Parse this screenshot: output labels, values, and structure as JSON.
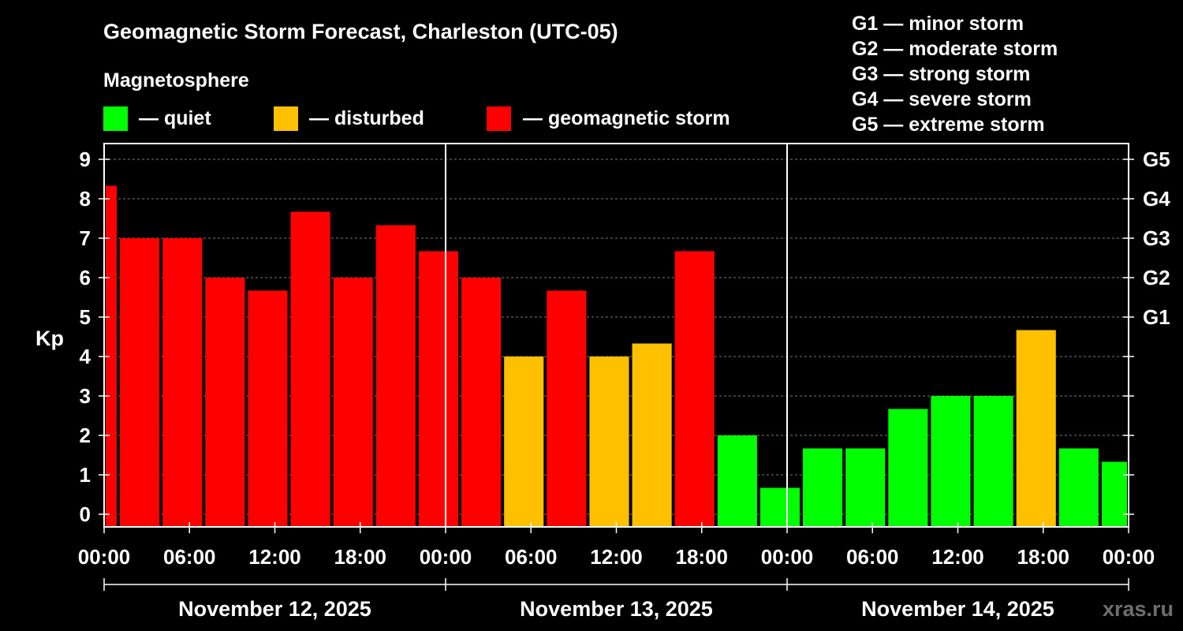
{
  "chart_data": {
    "type": "bar",
    "title": "Geomagnetic Storm Forecast, Charleston (UTC-05)",
    "legend_title": "Magnetosphere",
    "legend": [
      {
        "label": "— quiet",
        "color": "#00ff00"
      },
      {
        "label": "— disturbed",
        "color": "#ffc000"
      },
      {
        "label": "— geomagnetic storm",
        "color": "#ff0000"
      }
    ],
    "storm_scale": [
      "G1 — minor storm",
      "G2 — moderate storm",
      "G3 — strong storm",
      "G4 — severe storm",
      "G5 — extreme storm"
    ],
    "ylabel": "Kp",
    "ylim": [
      0,
      9
    ],
    "yticks": [
      "0",
      "1",
      "2",
      "3",
      "4",
      "5",
      "6",
      "7",
      "8",
      "9"
    ],
    "right_ticks": [
      {
        "value": 5,
        "label": "G1"
      },
      {
        "value": 6,
        "label": "G2"
      },
      {
        "value": 7,
        "label": "G3"
      },
      {
        "value": 8,
        "label": "G4"
      },
      {
        "value": 9,
        "label": "G5"
      }
    ],
    "xlim_hours": [
      0,
      72
    ],
    "xticks": [
      {
        "hour": 0,
        "label": "00:00"
      },
      {
        "hour": 6,
        "label": "06:00"
      },
      {
        "hour": 12,
        "label": "12:00"
      },
      {
        "hour": 18,
        "label": "18:00"
      },
      {
        "hour": 24,
        "label": "00:00"
      },
      {
        "hour": 30,
        "label": "06:00"
      },
      {
        "hour": 36,
        "label": "12:00"
      },
      {
        "hour": 42,
        "label": "18:00"
      },
      {
        "hour": 48,
        "label": "00:00"
      },
      {
        "hour": 54,
        "label": "06:00"
      },
      {
        "hour": 60,
        "label": "12:00"
      },
      {
        "hour": 66,
        "label": "18:00"
      },
      {
        "hour": 72,
        "label": "00:00"
      }
    ],
    "dates": [
      {
        "start_hour": 0,
        "end_hour": 24,
        "label": "November 12, 2025"
      },
      {
        "start_hour": 24,
        "end_hour": 48,
        "label": "November 13, 2025"
      },
      {
        "start_hour": 48,
        "end_hour": 72,
        "label": "November 14, 2025"
      }
    ],
    "day_dividers_hours": [
      24,
      48
    ],
    "levels": {
      "quiet": "#00ff00",
      "disturbed": "#ffc000",
      "storm": "#ff0000"
    },
    "bars": [
      {
        "start": 0,
        "end": 1,
        "kp": 8.33,
        "level": "storm"
      },
      {
        "start": 1,
        "end": 4,
        "kp": 7.0,
        "level": "storm"
      },
      {
        "start": 4,
        "end": 7,
        "kp": 7.0,
        "level": "storm"
      },
      {
        "start": 7,
        "end": 10,
        "kp": 6.0,
        "level": "storm"
      },
      {
        "start": 10,
        "end": 13,
        "kp": 5.67,
        "level": "storm"
      },
      {
        "start": 13,
        "end": 16,
        "kp": 7.67,
        "level": "storm"
      },
      {
        "start": 16,
        "end": 19,
        "kp": 6.0,
        "level": "storm"
      },
      {
        "start": 19,
        "end": 22,
        "kp": 7.33,
        "level": "storm"
      },
      {
        "start": 22,
        "end": 25,
        "kp": 6.67,
        "level": "storm"
      },
      {
        "start": 25,
        "end": 28,
        "kp": 6.0,
        "level": "storm"
      },
      {
        "start": 28,
        "end": 31,
        "kp": 4.0,
        "level": "disturbed"
      },
      {
        "start": 31,
        "end": 34,
        "kp": 5.67,
        "level": "storm"
      },
      {
        "start": 34,
        "end": 37,
        "kp": 4.0,
        "level": "disturbed"
      },
      {
        "start": 37,
        "end": 40,
        "kp": 4.33,
        "level": "disturbed"
      },
      {
        "start": 40,
        "end": 43,
        "kp": 6.67,
        "level": "storm"
      },
      {
        "start": 43,
        "end": 46,
        "kp": 2.0,
        "level": "quiet"
      },
      {
        "start": 46,
        "end": 49,
        "kp": 0.67,
        "level": "quiet"
      },
      {
        "start": 49,
        "end": 52,
        "kp": 1.67,
        "level": "quiet"
      },
      {
        "start": 52,
        "end": 55,
        "kp": 1.67,
        "level": "quiet"
      },
      {
        "start": 55,
        "end": 58,
        "kp": 2.67,
        "level": "quiet"
      },
      {
        "start": 58,
        "end": 61,
        "kp": 3.0,
        "level": "quiet"
      },
      {
        "start": 61,
        "end": 64,
        "kp": 3.0,
        "level": "quiet"
      },
      {
        "start": 64,
        "end": 67,
        "kp": 4.67,
        "level": "disturbed"
      },
      {
        "start": 67,
        "end": 70,
        "kp": 1.67,
        "level": "quiet"
      },
      {
        "start": 70,
        "end": 72,
        "kp": 1.33,
        "level": "quiet"
      }
    ],
    "grid": "dashed horizontal at integer Kp",
    "watermark": "xras.ru"
  }
}
